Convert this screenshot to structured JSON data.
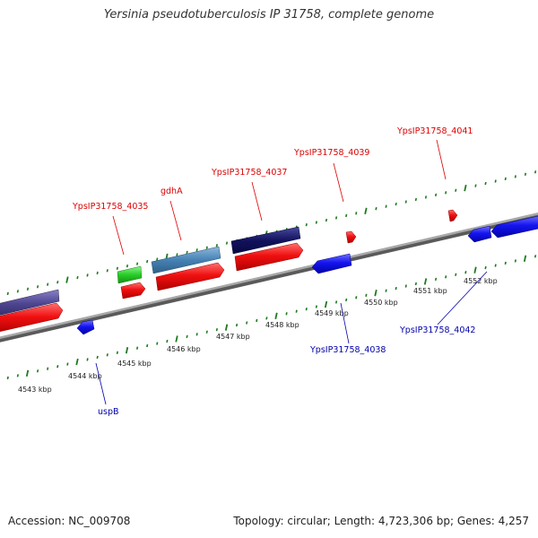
{
  "title": "Yersinia pseudotuberculosis IP 31758, complete genome",
  "footer": {
    "accession": "Accession: NC_009708",
    "summary": "Topology: circular; Length: 4,723,306 bp; Genes: 4,257"
  },
  "colors": {
    "forward_label": "#dd0000",
    "reverse_label": "#0000aa",
    "tick": "#1e7a1e",
    "backbone": "#8a8a8a"
  },
  "scale_labels": [
    {
      "text": "4543 kbp",
      "kbp": 4543
    },
    {
      "text": "4544 kbp",
      "kbp": 4544
    },
    {
      "text": "4545 kbp",
      "kbp": 4545
    },
    {
      "text": "4546 kbp",
      "kbp": 4546
    },
    {
      "text": "4547 kbp",
      "kbp": 4547
    },
    {
      "text": "4548 kbp",
      "kbp": 4548
    },
    {
      "text": "4549 kbp",
      "kbp": 4549
    },
    {
      "text": "4550 kbp",
      "kbp": 4550
    },
    {
      "text": "4551 kbp",
      "kbp": 4551
    },
    {
      "text": "4552 kbp",
      "kbp": 4552
    }
  ],
  "forward_labels": [
    {
      "text": "YpsIP31758_4035"
    },
    {
      "text": "gdhA"
    },
    {
      "text": "YpsIP31758_4037"
    },
    {
      "text": "YpsIP31758_4039"
    },
    {
      "text": "YpsIP31758_4041"
    }
  ],
  "reverse_labels": [
    {
      "text": "uspB"
    },
    {
      "text": "YpsIP31758_4038"
    },
    {
      "text": "YpsIP31758_4042"
    }
  ]
}
